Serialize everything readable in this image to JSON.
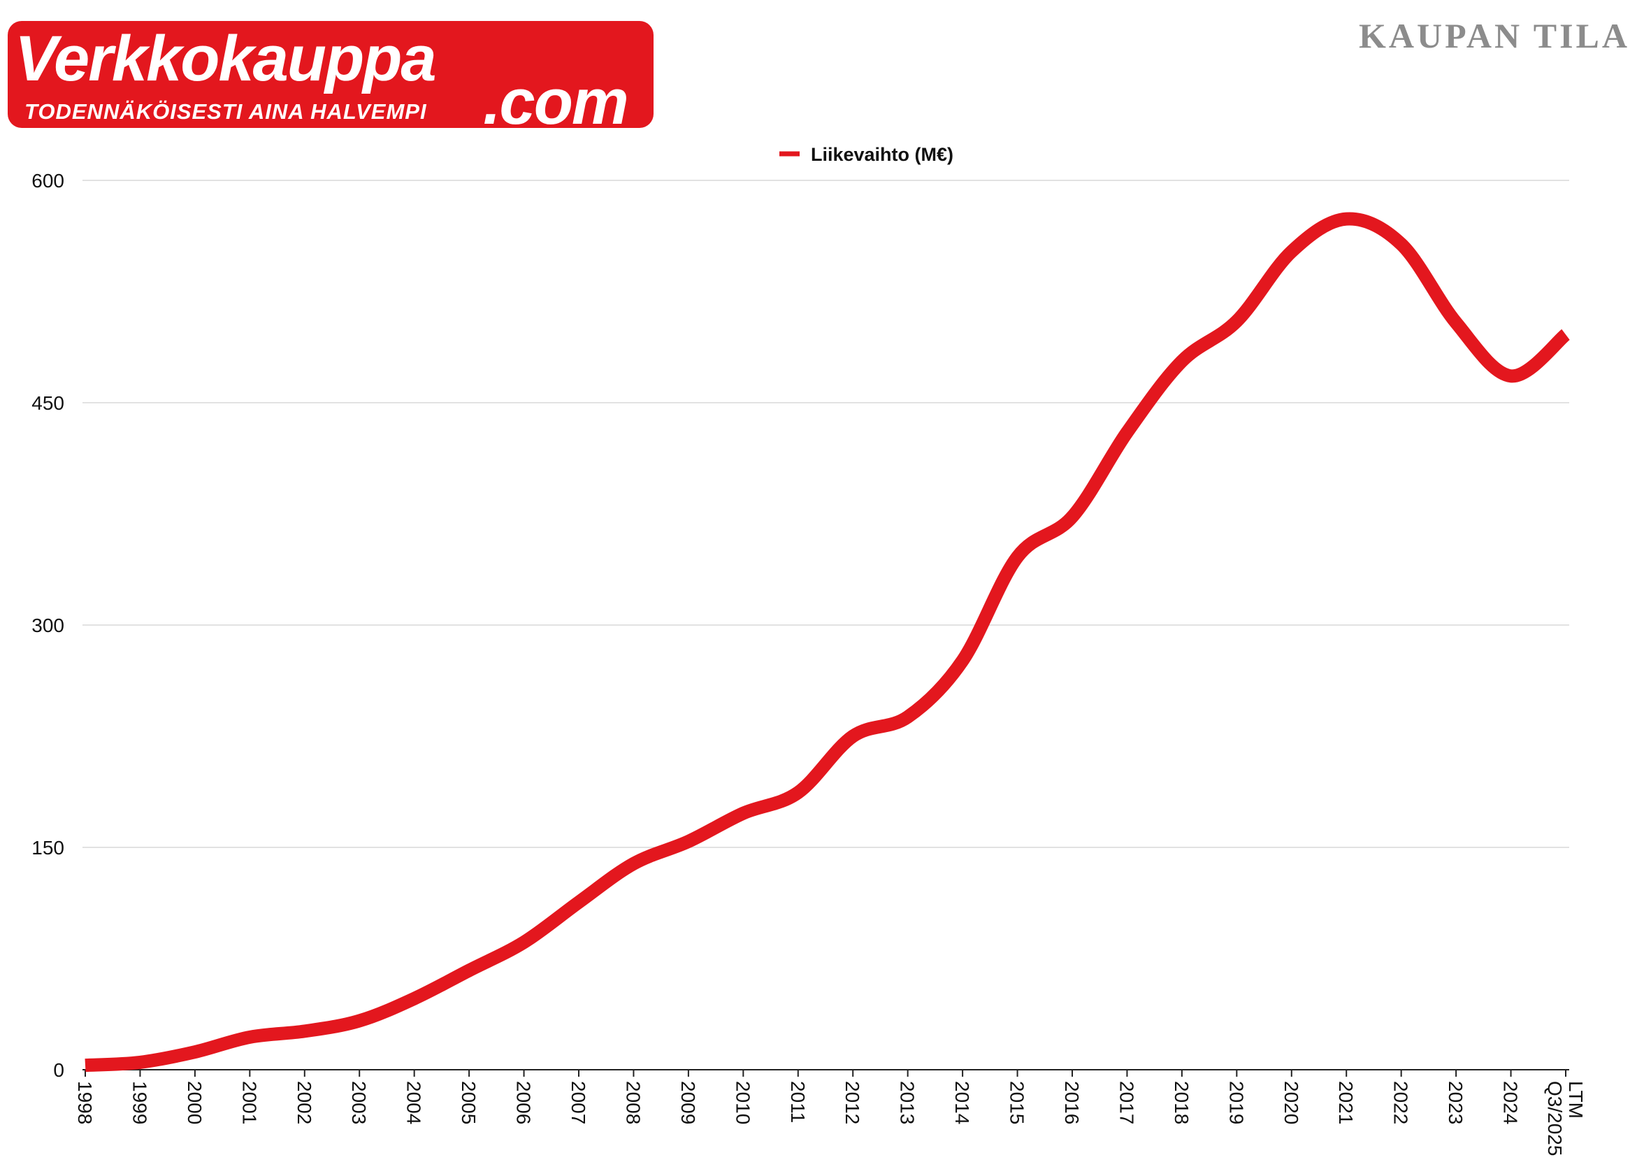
{
  "logo": {
    "main": "Verkkokauppa",
    "com": ".com",
    "tagline": "TODENNÄKÖISESTI AINA HALVEMPI",
    "color": "#e3171e"
  },
  "brand": "KAUPAN TILA",
  "chart_data": {
    "type": "line",
    "title": "",
    "xlabel": "",
    "ylabel": "",
    "ylim": [
      0,
      600
    ],
    "yticks": [
      0,
      150,
      300,
      450,
      600
    ],
    "grid": true,
    "legend_position": "top-center",
    "categories": [
      "1998",
      "1999",
      "2000",
      "2001",
      "2002",
      "2003",
      "2004",
      "2005",
      "2006",
      "2007",
      "2008",
      "2009",
      "2010",
      "2011",
      "2012",
      "2013",
      "2014",
      "2015",
      "2016",
      "2017",
      "2018",
      "2019",
      "2020",
      "2021",
      "2022",
      "2023",
      "2024",
      "LTM Q3/2025"
    ],
    "series": [
      {
        "name": "Liikevaihto (M€)",
        "color": "#e3171e",
        "values": [
          3,
          5,
          12,
          22,
          26,
          33,
          48,
          67,
          86,
          113,
          139,
          154,
          173,
          187,
          225,
          238,
          276,
          346,
          373,
          430,
          478,
          505,
          552,
          574,
          557,
          504,
          468,
          496
        ]
      }
    ]
  }
}
